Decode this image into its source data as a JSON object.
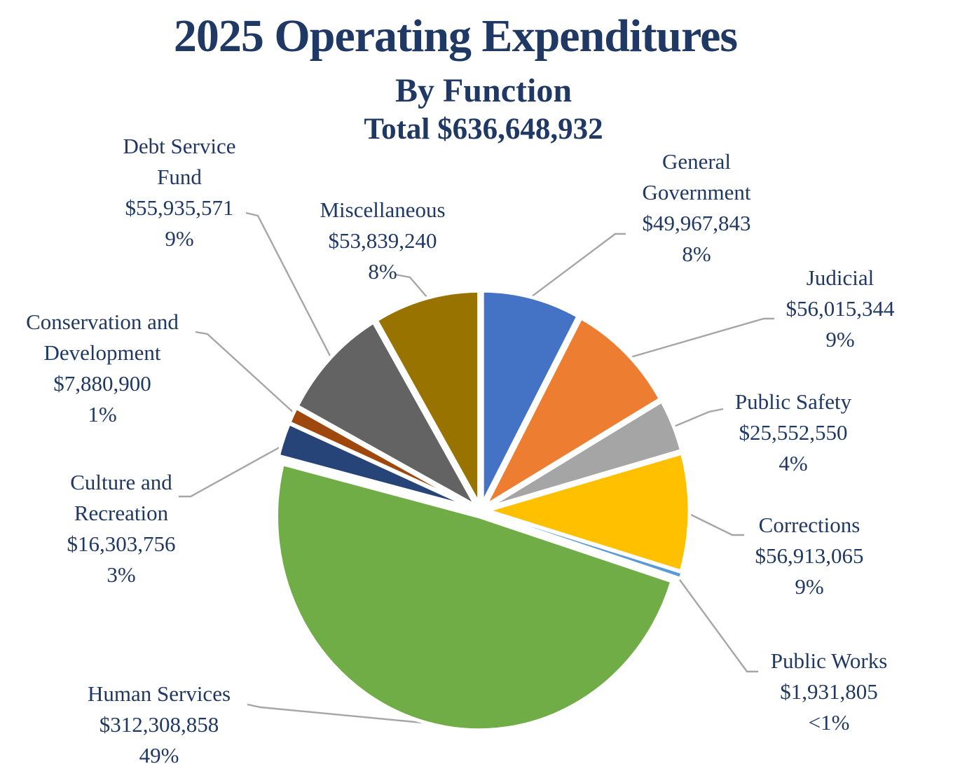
{
  "title": "2025 Operating Expenditures",
  "subtitle": "By Function",
  "total_label": "Total $636,648,932",
  "colors": {
    "title_text": "#1F3864",
    "label_text": "#1F3864",
    "leader_line": "#A6A6A6",
    "slice_border": "#FFFFFF",
    "background": "#FFFFFF"
  },
  "chart_data": {
    "type": "pie",
    "title": "2025 Operating Expenditures",
    "subtitle": "By Function",
    "total_label": "Total $636,648,932",
    "total": 636648932,
    "start_angle_deg": 0,
    "direction": "clockwise",
    "exploded": true,
    "legend_position": "none",
    "labels_style": "outside with leader lines: name, dollar amount, percent",
    "slices": [
      {
        "label": "General Government",
        "label_lines": [
          "General",
          "Government"
        ],
        "value": 49967843,
        "amount_label": "$49,967,843",
        "pct_label": "8%",
        "color": "#4472C4"
      },
      {
        "label": "Judicial",
        "label_lines": [
          "Judicial"
        ],
        "value": 56015344,
        "amount_label": "$56,015,344",
        "pct_label": "9%",
        "color": "#ED7D31"
      },
      {
        "label": "Public Safety",
        "label_lines": [
          "Public Safety"
        ],
        "value": 25552550,
        "amount_label": "$25,552,550",
        "pct_label": "4%",
        "color": "#A5A5A5"
      },
      {
        "label": "Corrections",
        "label_lines": [
          "Corrections"
        ],
        "value": 56913065,
        "amount_label": "$56,913,065",
        "pct_label": "9%",
        "color": "#FFC000"
      },
      {
        "label": "Public Works",
        "label_lines": [
          "Public Works"
        ],
        "value": 1931805,
        "amount_label": "$1,931,805",
        "pct_label": "<1%",
        "color": "#5B9BD5"
      },
      {
        "label": "Human Services",
        "label_lines": [
          "Human Services"
        ],
        "value": 312308858,
        "amount_label": "$312,308,858",
        "pct_label": "49%",
        "color": "#70AD47"
      },
      {
        "label": "Culture and Recreation",
        "label_lines": [
          "Culture and",
          "Recreation"
        ],
        "value": 16303756,
        "amount_label": "$16,303,756",
        "pct_label": "3%",
        "color": "#264478"
      },
      {
        "label": "Conservation and Development",
        "label_lines": [
          "Conservation and",
          "Development"
        ],
        "value": 7880900,
        "amount_label": "$7,880,900",
        "pct_label": "1%",
        "color": "#9E480E"
      },
      {
        "label": "Debt Service Fund",
        "label_lines": [
          "Debt Service",
          "Fund"
        ],
        "value": 55935571,
        "amount_label": "$55,935,571",
        "pct_label": "9%",
        "color": "#636363"
      },
      {
        "label": "Miscellaneous",
        "label_lines": [
          "Miscellaneous"
        ],
        "value": 53839240,
        "amount_label": "$53,839,240",
        "pct_label": "8%",
        "color": "#997300"
      }
    ]
  }
}
